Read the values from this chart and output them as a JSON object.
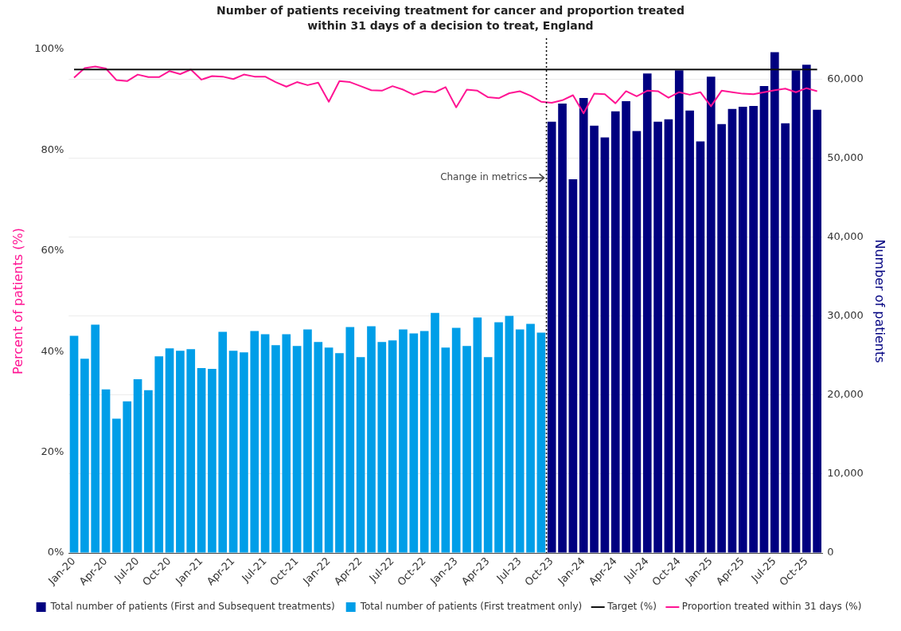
{
  "chart_data": {
    "type": "bar",
    "title": "Number of patients receiving treatment for cancer and proportion treated within 31 days of a decision to treat, England",
    "ylabel": "Percent of patients (%)",
    "y2label": "Number of patients",
    "categories": [
      "Jan-20",
      null,
      null,
      "Apr-20",
      null,
      null,
      "Jul-20",
      null,
      null,
      "Oct-20",
      null,
      null,
      "Jan-21",
      null,
      null,
      "Apr-21",
      null,
      null,
      "Jul-21",
      null,
      null,
      "Oct-21",
      null,
      null,
      "Jan-22",
      null,
      null,
      "Apr-22",
      null,
      null,
      "Jul-22",
      null,
      null,
      "Oct-22",
      null,
      null,
      "Jan-23",
      null,
      null,
      "Apr-23",
      null,
      null,
      "Jul-23",
      null,
      null,
      "Oct-23",
      null,
      null,
      "Jan-24",
      null,
      null,
      "Apr-24",
      null,
      null,
      "Jul-24",
      null,
      null,
      "Oct-24",
      null,
      null,
      "Jan-25",
      null,
      null,
      "Apr-25",
      null,
      null,
      "Jul-25",
      null,
      null,
      "Oct-25",
      null
    ],
    "series": [
      {
        "name": "Total number of patients (First and Subsequent treatments)",
        "axis": "y2",
        "color": "#000080",
        "values": [
          null,
          null,
          null,
          null,
          null,
          null,
          null,
          null,
          null,
          null,
          null,
          null,
          null,
          null,
          null,
          null,
          null,
          null,
          null,
          null,
          null,
          null,
          null,
          null,
          null,
          null,
          null,
          null,
          null,
          null,
          null,
          null,
          null,
          null,
          null,
          null,
          null,
          null,
          null,
          null,
          null,
          null,
          null,
          null,
          null,
          54600,
          56900,
          47300,
          57600,
          54100,
          52600,
          55900,
          57200,
          53400,
          60700,
          54600,
          54900,
          61100,
          56000,
          52100,
          60300,
          54300,
          56200,
          56500,
          56600,
          59100,
          63400,
          54400,
          61100,
          61800,
          56100
        ]
      },
      {
        "name": "Total number of patients (First treatment only)",
        "axis": "y2",
        "color": "#009ee8",
        "values": [
          27500,
          24600,
          28900,
          20700,
          17000,
          19200,
          22000,
          20600,
          24900,
          25900,
          25600,
          25800,
          23400,
          23300,
          28000,
          25600,
          25400,
          28100,
          27700,
          26300,
          27700,
          26200,
          28300,
          26700,
          26000,
          25300,
          28600,
          24800,
          28700,
          26700,
          26900,
          28300,
          27800,
          28100,
          30400,
          26000,
          28500,
          26200,
          29800,
          24800,
          29200,
          30000,
          28300,
          29000,
          27900,
          null,
          null,
          null,
          null,
          null,
          null,
          null,
          null,
          null,
          null,
          null,
          null,
          null,
          null,
          null,
          null,
          null,
          null,
          null,
          null,
          null,
          null,
          null,
          null,
          null,
          null
        ]
      },
      {
        "name": "Target (%)",
        "type": "line",
        "axis": "y",
        "color": "#111111",
        "values": [
          96,
          96,
          96,
          96,
          96,
          96,
          96,
          96,
          96,
          96,
          96,
          96,
          96,
          96,
          96,
          96,
          96,
          96,
          96,
          96,
          96,
          96,
          96,
          96,
          96,
          96,
          96,
          96,
          96,
          96,
          96,
          96,
          96,
          96,
          96,
          96,
          96,
          96,
          96,
          96,
          96,
          96,
          96,
          96,
          96,
          96,
          96,
          96,
          96,
          96,
          96,
          96,
          96,
          96,
          96,
          96,
          96,
          96,
          96,
          96,
          96,
          96,
          96,
          96,
          96,
          96,
          96,
          96,
          96,
          96,
          96
        ]
      },
      {
        "name": "Proportion treated within 31 days (%)",
        "type": "line",
        "axis": "y",
        "color": "#ff1493",
        "values": [
          94.4,
          96.3,
          96.6,
          96.2,
          93.9,
          93.7,
          95.0,
          94.5,
          94.5,
          95.7,
          95.1,
          96.0,
          94.0,
          94.7,
          94.6,
          94.1,
          95.0,
          94.6,
          94.6,
          93.5,
          92.6,
          93.5,
          92.9,
          93.4,
          89.6,
          93.7,
          93.5,
          92.7,
          91.9,
          91.8,
          92.7,
          92.0,
          91.0,
          91.7,
          91.5,
          92.5,
          88.5,
          92.0,
          91.8,
          90.5,
          90.3,
          91.3,
          91.7,
          90.8,
          89.6,
          89.4,
          89.9,
          90.9,
          87.3,
          91.2,
          91.1,
          89.3,
          91.7,
          90.7,
          91.8,
          91.7,
          90.4,
          91.5,
          91.0,
          91.5,
          88.7,
          91.8,
          91.5,
          91.2,
          91.1,
          91.5,
          91.9,
          92.2,
          91.5,
          92.3,
          91.7
        ]
      }
    ],
    "ylim": [
      0,
      100
    ],
    "yticks": [
      {
        "value": 0,
        "label": "0%"
      },
      {
        "value": 20,
        "label": "20%"
      },
      {
        "value": 40,
        "label": "40%"
      },
      {
        "value": 60,
        "label": "60%"
      },
      {
        "value": 80,
        "label": "80%"
      },
      {
        "value": 100,
        "label": "100%"
      }
    ],
    "y2lim": [
      0,
      63750
    ],
    "y2ticks": [
      0,
      {
        "value": 10000,
        "label": "10,000"
      },
      {
        "value": 20000,
        "label": "20,000"
      },
      {
        "value": 30000,
        "label": "30,000"
      },
      {
        "value": 40000,
        "label": "40,000"
      },
      {
        "value": 50000,
        "label": "50,000"
      },
      {
        "value": 60000,
        "label": "60,000"
      }
    ],
    "ref_lines": [
      {
        "axis": "x",
        "value": "Oct-23",
        "label": "Change in metrics",
        "line_style": "dotted",
        "color": "#000000"
      }
    ],
    "grid": "y",
    "legend": "bottom"
  }
}
